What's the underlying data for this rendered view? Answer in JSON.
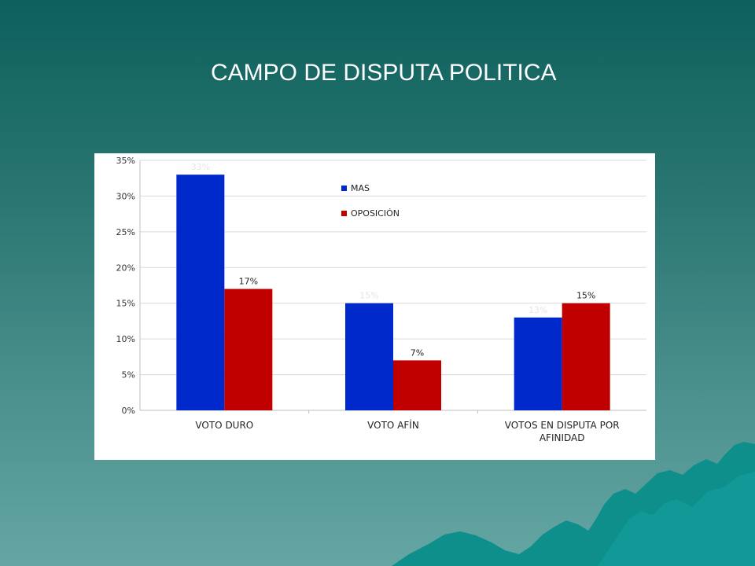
{
  "slide": {
    "title": "CAMPO DE DISPUTA POLITICA"
  },
  "colors": {
    "background_top": "#0d605c",
    "background_bottom": "#64a6a3",
    "mountain": "#0e8f8c",
    "mas": "#0029cc",
    "oposicion": "#c00000"
  },
  "chart_data": {
    "type": "bar",
    "title": "",
    "xlabel": "",
    "ylabel": "",
    "categories": [
      "VOTO DURO",
      "VOTO AFÍN",
      "VOTOS EN DISPUTA POR AFINIDAD"
    ],
    "series": [
      {
        "name": "MAS",
        "values": [
          33,
          15,
          13
        ],
        "labels": [
          "33%",
          "15%",
          "13%"
        ],
        "color": "#0029cc"
      },
      {
        "name": "OPOSICIÓN",
        "values": [
          17,
          7,
          15
        ],
        "labels": [
          "17%",
          "7%",
          "15%"
        ],
        "color": "#c00000"
      }
    ],
    "ylim": [
      0,
      35
    ],
    "yticks": [
      0,
      5,
      10,
      15,
      20,
      25,
      30,
      35
    ],
    "ytick_labels": [
      "0%",
      "5%",
      "10%",
      "15%",
      "20%",
      "25%",
      "30%",
      "35%"
    ],
    "grid": true,
    "legend_position": "top-center"
  }
}
